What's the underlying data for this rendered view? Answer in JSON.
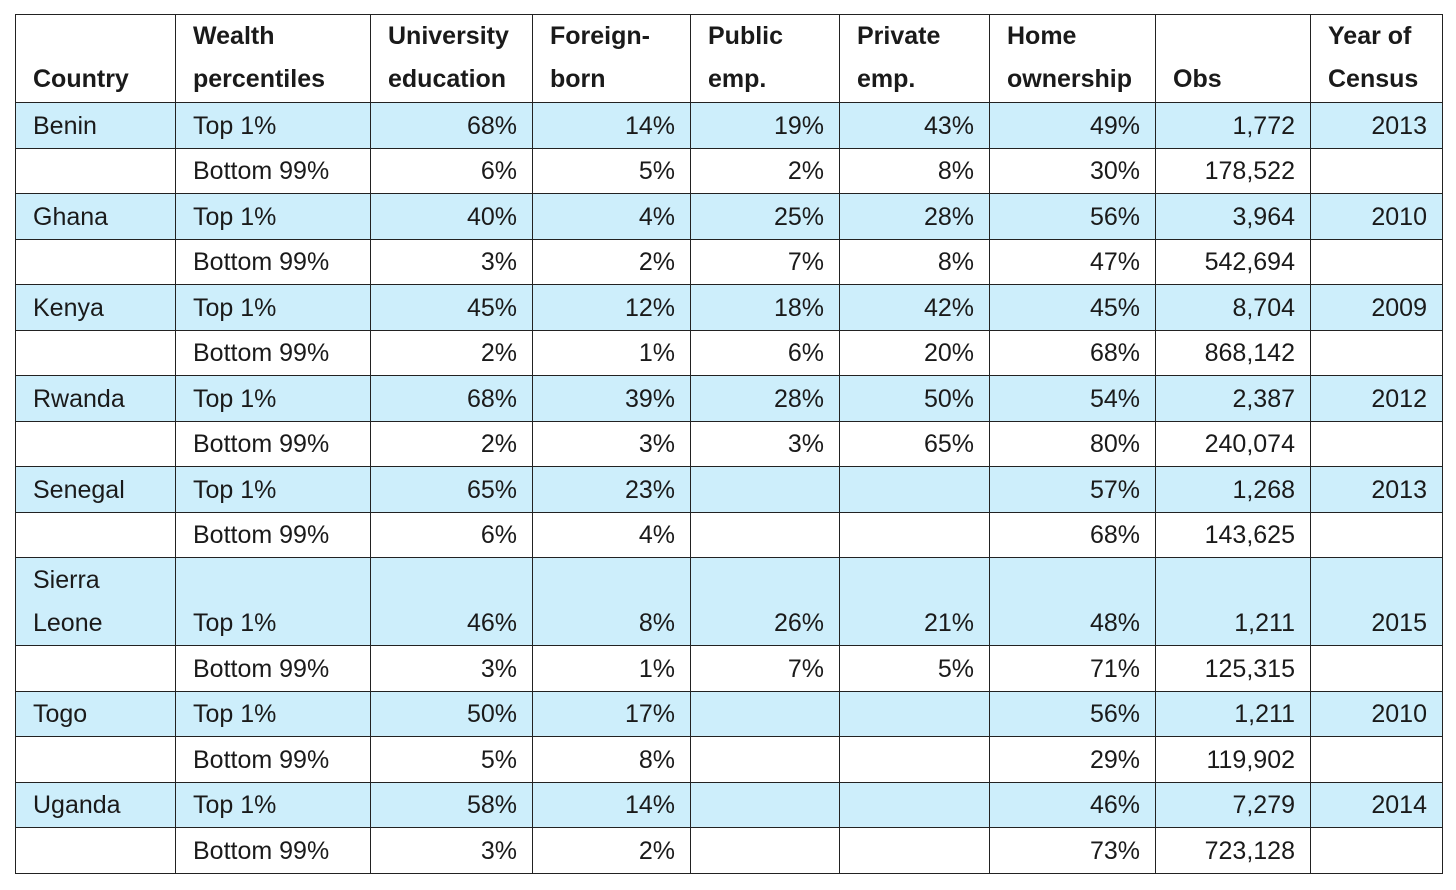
{
  "headers": [
    [
      "Country"
    ],
    [
      "Wealth",
      "percentiles"
    ],
    [
      "University",
      "education"
    ],
    [
      "Foreign-",
      "born"
    ],
    [
      "Public",
      "emp."
    ],
    [
      "Private",
      "emp."
    ],
    [
      "Home",
      "ownership"
    ],
    [
      "Obs"
    ],
    [
      "Year of",
      "Census"
    ]
  ],
  "rows": [
    {
      "country": "Benin",
      "wealth": "Top 1%",
      "univ": "68%",
      "foreign": "14%",
      "public": "19%",
      "private": "43%",
      "home": "49%",
      "obs": "1,772",
      "year": "2013"
    },
    {
      "country": "",
      "wealth": "Bottom 99%",
      "univ": "6%",
      "foreign": "5%",
      "public": "2%",
      "private": "8%",
      "home": "30%",
      "obs": "178,522",
      "year": ""
    },
    {
      "country": "Ghana",
      "wealth": "Top 1%",
      "univ": "40%",
      "foreign": "4%",
      "public": "25%",
      "private": "28%",
      "home": "56%",
      "obs": "3,964",
      "year": "2010"
    },
    {
      "country": "",
      "wealth": "Bottom 99%",
      "univ": "3%",
      "foreign": "2%",
      "public": "7%",
      "private": "8%",
      "home": "47%",
      "obs": "542,694",
      "year": ""
    },
    {
      "country": "Kenya",
      "wealth": "Top 1%",
      "univ": "45%",
      "foreign": "12%",
      "public": "18%",
      "private": "42%",
      "home": "45%",
      "obs": "8,704",
      "year": "2009"
    },
    {
      "country": "",
      "wealth": "Bottom 99%",
      "univ": "2%",
      "foreign": "1%",
      "public": "6%",
      "private": "20%",
      "home": "68%",
      "obs": "868,142",
      "year": ""
    },
    {
      "country": "Rwanda",
      "wealth": "Top 1%",
      "univ": "68%",
      "foreign": "39%",
      "public": "28%",
      "private": "50%",
      "home": "54%",
      "obs": "2,387",
      "year": "2012"
    },
    {
      "country": "",
      "wealth": "Bottom 99%",
      "univ": "2%",
      "foreign": "3%",
      "public": "3%",
      "private": "65%",
      "home": "80%",
      "obs": "240,074",
      "year": ""
    },
    {
      "country": "Senegal",
      "wealth": "Top 1%",
      "univ": "65%",
      "foreign": "23%",
      "public": "",
      "private": "",
      "home": "57%",
      "obs": "1,268",
      "year": "2013"
    },
    {
      "country": "",
      "wealth": "Bottom 99%",
      "univ": "6%",
      "foreign": "4%",
      "public": "",
      "private": "",
      "home": "68%",
      "obs": "143,625",
      "year": ""
    },
    {
      "country": "Sierra Leone",
      "wealth": "Top 1%",
      "univ": "46%",
      "foreign": "8%",
      "public": "26%",
      "private": "21%",
      "home": "48%",
      "obs": "1,211",
      "year": "2015",
      "tall": true
    },
    {
      "country": "",
      "wealth": "Bottom 99%",
      "univ": "3%",
      "foreign": "1%",
      "public": "7%",
      "private": "5%",
      "home": "71%",
      "obs": "125,315",
      "year": ""
    },
    {
      "country": "Togo",
      "wealth": "Top 1%",
      "univ": "50%",
      "foreign": "17%",
      "public": "",
      "private": "",
      "home": "56%",
      "obs": "1,211",
      "year": "2010"
    },
    {
      "country": "",
      "wealth": "Bottom 99%",
      "univ": "5%",
      "foreign": "8%",
      "public": "",
      "private": "",
      "home": "29%",
      "obs": "119,902",
      "year": ""
    },
    {
      "country": "Uganda",
      "wealth": "Top 1%",
      "univ": "58%",
      "foreign": "14%",
      "public": "",
      "private": "",
      "home": "46%",
      "obs": "7,279",
      "year": "2014"
    },
    {
      "country": "",
      "wealth": "Bottom 99%",
      "univ": "3%",
      "foreign": "2%",
      "public": "",
      "private": "",
      "home": "73%",
      "obs": "723,128",
      "year": ""
    }
  ],
  "colors": {
    "highlight_row": "#cdeefb",
    "border": "#222222",
    "text": "#1a1a1a"
  }
}
